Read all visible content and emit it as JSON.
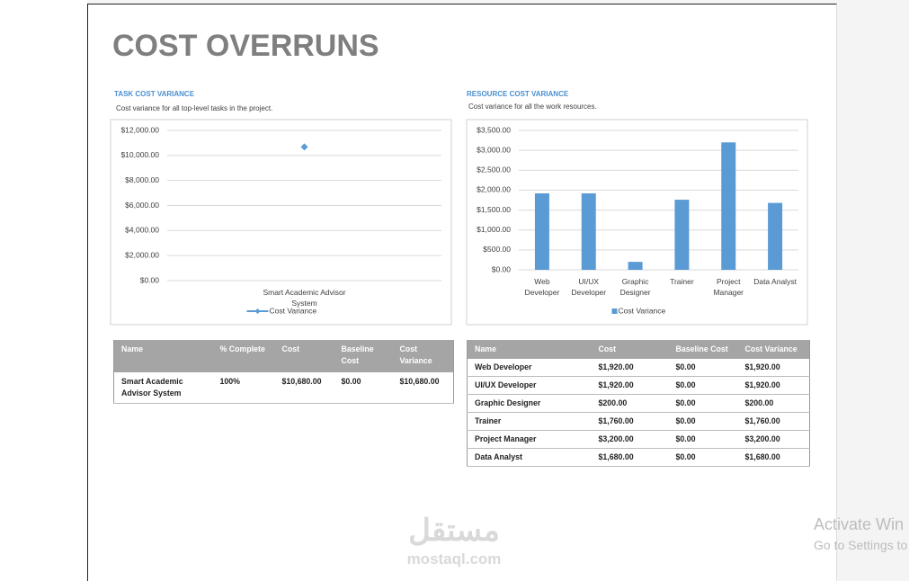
{
  "title": "COST OVERRUNS",
  "chart_data": [
    {
      "type": "line",
      "title": "TASK COST VARIANCE",
      "subtitle": "Cost variance for all top-level tasks in the project.",
      "categories": [
        "Smart Academic Advisor System"
      ],
      "series": [
        {
          "name": "Cost Variance",
          "color": "#5b9bd5",
          "values": [
            10680
          ]
        }
      ],
      "ylim": [
        0,
        12000
      ],
      "yticks": [
        {
          "value": 0,
          "label": "$0.00"
        },
        {
          "value": 2000,
          "label": "$2,000.00"
        },
        {
          "value": 4000,
          "label": "$4,000.00"
        },
        {
          "value": 6000,
          "label": "$6,000.00"
        },
        {
          "value": 8000,
          "label": "$8,000.00"
        },
        {
          "value": 10000,
          "label": "$10,000.00"
        },
        {
          "value": 12000,
          "label": "$12,000.00"
        }
      ],
      "grid": true,
      "legend": "bottom"
    },
    {
      "type": "bar",
      "title": "RESOURCE COST VARIANCE",
      "subtitle": "Cost variance for all the work resources.",
      "categories": [
        "Web Developer",
        "UI/UX Developer",
        "Graphic Designer",
        "Trainer",
        "Project Manager",
        "Data Analyst"
      ],
      "series": [
        {
          "name": "Cost Variance",
          "color": "#5b9bd5",
          "values": [
            1920,
            1920,
            200,
            1760,
            3200,
            1680
          ]
        }
      ],
      "ylim": [
        0,
        3500
      ],
      "yticks": [
        {
          "value": 0,
          "label": "$0.00"
        },
        {
          "value": 500,
          "label": "$500.00"
        },
        {
          "value": 1000,
          "label": "$1,000.00"
        },
        {
          "value": 1500,
          "label": "$1,500.00"
        },
        {
          "value": 2000,
          "label": "$2,000.00"
        },
        {
          "value": 2500,
          "label": "$2,500.00"
        },
        {
          "value": 3000,
          "label": "$3,000.00"
        },
        {
          "value": 3500,
          "label": "$3,500.00"
        }
      ],
      "grid": true,
      "legend": "bottom"
    }
  ],
  "tables": [
    {
      "header": [
        "Name",
        "% Complete",
        "Cost",
        "Baseline Cost",
        "Cost Variance"
      ],
      "rows": [
        [
          "Smart Academic Advisor System",
          "100%",
          "$10,680.00",
          "$0.00",
          "$10,680.00"
        ]
      ]
    },
    {
      "header": [
        "Name",
        "Cost",
        "Baseline Cost",
        "Cost Variance"
      ],
      "rows": [
        [
          "Web Developer",
          "$1,920.00",
          "$0.00",
          "$1,920.00"
        ],
        [
          "UI/UX Developer",
          "$1,920.00",
          "$0.00",
          "$1,920.00"
        ],
        [
          "Graphic Designer",
          "$200.00",
          "$0.00",
          "$200.00"
        ],
        [
          "Trainer",
          "$1,760.00",
          "$0.00",
          "$1,760.00"
        ],
        [
          "Project Manager",
          "$3,200.00",
          "$0.00",
          "$3,200.00"
        ],
        [
          "Data Analyst",
          "$1,680.00",
          "$0.00",
          "$1,680.00"
        ]
      ]
    }
  ],
  "watermark": {
    "logo": "مستقل",
    "site": "mostaql.com"
  },
  "overlay": {
    "line1": "Activate Win",
    "line2": "Go to Settings to"
  }
}
